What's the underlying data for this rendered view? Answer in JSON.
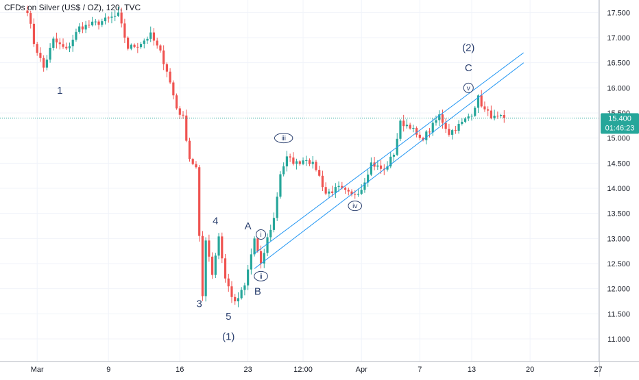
{
  "header": {
    "title": "CFDs on Silver (US$ / OZ), 120, TVC"
  },
  "colors": {
    "up": "#26a69a",
    "down": "#ef5350",
    "channel": "#2196f3",
    "wave_label": "#2a3f6e",
    "last_price_line": "#26a69a",
    "price_badge": "#26a69a"
  },
  "price_badge": {
    "price": "15.400",
    "countdown": "01:46:23"
  },
  "chart_data": {
    "type": "candlestick",
    "symbol_line": "CFDs on Silver (US$ / OZ), 120, TVC",
    "y_ticks": [
      "17.500",
      "17.000",
      "16.500",
      "16.000",
      "15.500",
      "15.000",
      "14.500",
      "14.000",
      "13.500",
      "13.000",
      "12.500",
      "12.000",
      "11.500",
      "11.000"
    ],
    "x_ticks": [
      "Mar",
      "9",
      "16",
      "23",
      "12:00",
      "Apr",
      "7",
      "13",
      "20",
      "27"
    ],
    "ylim": [
      10.55,
      17.75
    ],
    "last_price": 15.4,
    "waypoints": [
      {
        "t": 0,
        "p": 17.55
      },
      {
        "t": 2,
        "p": 16.9
      },
      {
        "t": 5,
        "p": 16.4
      },
      {
        "t": 8,
        "p": 16.95
      },
      {
        "t": 12,
        "p": 16.75
      },
      {
        "t": 16,
        "p": 17.2
      },
      {
        "t": 22,
        "p": 17.3
      },
      {
        "t": 28,
        "p": 17.45
      },
      {
        "t": 31,
        "p": 16.8
      },
      {
        "t": 34,
        "p": 16.85
      },
      {
        "t": 38,
        "p": 17.05
      },
      {
        "t": 41,
        "p": 16.7
      },
      {
        "t": 43,
        "p": 16.35
      },
      {
        "t": 46,
        "p": 15.6
      },
      {
        "t": 48,
        "p": 15.4
      },
      {
        "t": 50,
        "p": 14.6
      },
      {
        "t": 52,
        "p": 14.4
      },
      {
        "t": 53,
        "p": 13.0
      },
      {
        "t": 54,
        "p": 11.85
      },
      {
        "t": 55,
        "p": 13.0
      },
      {
        "t": 57,
        "p": 12.3
      },
      {
        "t": 59,
        "p": 13.05
      },
      {
        "t": 61,
        "p": 12.2
      },
      {
        "t": 64,
        "p": 11.7
      },
      {
        "t": 67,
        "p": 12.05
      },
      {
        "t": 70,
        "p": 13.0
      },
      {
        "t": 72,
        "p": 12.45
      },
      {
        "t": 74,
        "p": 13.0
      },
      {
        "t": 76,
        "p": 13.4
      },
      {
        "t": 78,
        "p": 14.3
      },
      {
        "t": 80,
        "p": 14.6
      },
      {
        "t": 83,
        "p": 14.5
      },
      {
        "t": 86,
        "p": 14.6
      },
      {
        "t": 89,
        "p": 14.4
      },
      {
        "t": 92,
        "p": 13.9
      },
      {
        "t": 96,
        "p": 14.0
      },
      {
        "t": 100,
        "p": 13.85
      },
      {
        "t": 103,
        "p": 14.0
      },
      {
        "t": 106,
        "p": 14.5
      },
      {
        "t": 110,
        "p": 14.35
      },
      {
        "t": 113,
        "p": 14.7
      },
      {
        "t": 115,
        "p": 15.3
      },
      {
        "t": 118,
        "p": 15.25
      },
      {
        "t": 121,
        "p": 14.95
      },
      {
        "t": 124,
        "p": 15.15
      },
      {
        "t": 127,
        "p": 15.45
      },
      {
        "t": 130,
        "p": 15.1
      },
      {
        "t": 134,
        "p": 15.3
      },
      {
        "t": 137,
        "p": 15.5
      },
      {
        "t": 139,
        "p": 15.8
      },
      {
        "t": 141,
        "p": 15.55
      },
      {
        "t": 144,
        "p": 15.4
      },
      {
        "t": 147,
        "p": 15.4
      }
    ],
    "channel_lines": [
      {
        "t1": 70,
        "p1": 12.7,
        "t2": 153,
        "p2": 16.7
      },
      {
        "t1": 70,
        "p1": 12.4,
        "t2": 153,
        "p2": 16.5
      }
    ],
    "wave_labels": [
      {
        "text": "1",
        "t": 10,
        "p": 15.95,
        "style": "plain"
      },
      {
        "text": "3",
        "t": 53,
        "p": 11.7,
        "style": "plain"
      },
      {
        "text": "4",
        "t": 58,
        "p": 13.35,
        "style": "plain"
      },
      {
        "text": "5",
        "t": 62,
        "p": 11.45,
        "style": "plain"
      },
      {
        "text": "(1)",
        "t": 62,
        "p": 11.05,
        "style": "plain"
      },
      {
        "text": "A",
        "t": 68,
        "p": 13.25,
        "style": "plain"
      },
      {
        "text": "B",
        "t": 71,
        "p": 11.95,
        "style": "plain"
      },
      {
        "text": "i",
        "t": 72,
        "p": 13.08,
        "style": "circle"
      },
      {
        "text": "ii",
        "t": 72,
        "p": 12.25,
        "style": "circle"
      },
      {
        "text": "iii",
        "t": 79,
        "p": 15.0,
        "style": "circle"
      },
      {
        "text": "iv",
        "t": 101,
        "p": 13.65,
        "style": "circle"
      },
      {
        "text": "v",
        "t": 136,
        "p": 16.0,
        "style": "circle"
      },
      {
        "text": "(2)",
        "t": 136,
        "p": 16.8,
        "style": "plain"
      },
      {
        "text": "C",
        "t": 136,
        "p": 16.4,
        "style": "plain"
      }
    ]
  }
}
